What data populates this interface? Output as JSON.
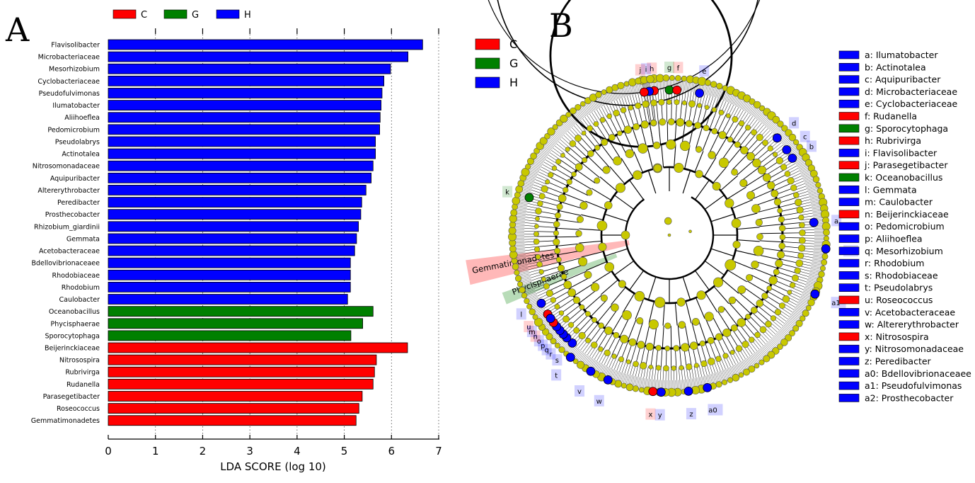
{
  "panel_a": {
    "letter": "A",
    "legend": [
      {
        "label": "C",
        "color": "#ff0000"
      },
      {
        "label": "G",
        "color": "#008000"
      },
      {
        "label": "H",
        "color": "#0000ff"
      }
    ],
    "chart_data": {
      "type": "bar",
      "orientation": "horizontal",
      "xlabel": "LDA SCORE (log 10)",
      "xlim": [
        0,
        7
      ],
      "xticks": [
        0,
        1,
        2,
        3,
        4,
        5,
        6,
        7
      ],
      "grid": "vertical dotted",
      "categories": [
        "Flavisolibacter",
        "Microbacteriaceae",
        "Mesorhizobium",
        "Cyclobacteriaceae",
        "Pseudofulvimonas",
        "Ilumatobacter",
        "Aliihoeflea",
        "Pedomicrobium",
        "Pseudolabrys",
        "Actinotalea",
        "Nitrosomonadaceae",
        "Aquipuribacter",
        "Altererythrobacter",
        "Peredibacter",
        "Prosthecobacter",
        "Rhizobium_giardinii",
        "Gemmata",
        "Acetobacteraceae",
        "Bdellovibrionaceaee",
        "Rhodobiaceae",
        "Rhodobium",
        "Caulobacter",
        "Oceanobacillus",
        "Phycisphaerae",
        "Sporocytophaga",
        "Beijerinckiaceae",
        "Nitrosospira",
        "Rubrivirga",
        "Rudanella",
        "Parasegetibacter",
        "Roseococcus",
        "Gemmatimonadetes"
      ],
      "values": [
        6.66,
        6.35,
        5.98,
        5.84,
        5.8,
        5.78,
        5.76,
        5.75,
        5.66,
        5.66,
        5.61,
        5.57,
        5.46,
        5.37,
        5.35,
        5.3,
        5.26,
        5.22,
        5.13,
        5.13,
        5.13,
        5.07,
        5.61,
        5.39,
        5.14,
        6.34,
        5.68,
        5.64,
        5.61,
        5.38,
        5.31,
        5.25
      ],
      "groups": [
        "H",
        "H",
        "H",
        "H",
        "H",
        "H",
        "H",
        "H",
        "H",
        "H",
        "H",
        "H",
        "H",
        "H",
        "H",
        "H",
        "H",
        "H",
        "H",
        "H",
        "H",
        "H",
        "G",
        "G",
        "G",
        "C",
        "C",
        "C",
        "C",
        "C",
        "C",
        "C"
      ]
    }
  },
  "panel_b": {
    "letter": "B",
    "legend": [
      {
        "label": "C",
        "color": "#ff0000"
      },
      {
        "label": "G",
        "color": "#008000"
      },
      {
        "label": "H",
        "color": "#0000ff"
      }
    ],
    "clade_legend": [
      {
        "label": "a: Ilumatobacter",
        "group": "H"
      },
      {
        "label": "b: Actinotalea",
        "group": "H"
      },
      {
        "label": "c: Aquipuribacter",
        "group": "H"
      },
      {
        "label": "d: Microbacteriaceae",
        "group": "H"
      },
      {
        "label": "e: Cyclobacteriaceae",
        "group": "H"
      },
      {
        "label": "f: Rudanella",
        "group": "C"
      },
      {
        "label": "g: Sporocytophaga",
        "group": "G"
      },
      {
        "label": "h: Rubrivirga",
        "group": "C"
      },
      {
        "label": "i: Flavisolibacter",
        "group": "H"
      },
      {
        "label": "j: Parasegetibacter",
        "group": "C"
      },
      {
        "label": "k: Oceanobacillus",
        "group": "G"
      },
      {
        "label": "l: Gemmata",
        "group": "H"
      },
      {
        "label": "m: Caulobacter",
        "group": "H"
      },
      {
        "label": "n: Beijerinckiaceae",
        "group": "C"
      },
      {
        "label": "o: Pedomicrobium",
        "group": "H"
      },
      {
        "label": "p: Aliihoeflea",
        "group": "H"
      },
      {
        "label": "q: Mesorhizobium",
        "group": "H"
      },
      {
        "label": "r: Rhodobium",
        "group": "H"
      },
      {
        "label": "s: Rhodobiaceae",
        "group": "H"
      },
      {
        "label": "t: Pseudolabrys",
        "group": "H"
      },
      {
        "label": "u: Roseococcus",
        "group": "C"
      },
      {
        "label": "v: Acetobacteraceae",
        "group": "H"
      },
      {
        "label": "w: Altererythrobacter",
        "group": "H"
      },
      {
        "label": "x: Nitrosospira",
        "group": "C"
      },
      {
        "label": "y: Nitrosomonadaceae",
        "group": "H"
      },
      {
        "label": "z: Peredibacter",
        "group": "H"
      },
      {
        "label": "a0: Bdellovibrionaceaee",
        "group": "H"
      },
      {
        "label": "a1: Pseudofulvimonas",
        "group": "H"
      },
      {
        "label": "a2: Prosthecobacter",
        "group": "H"
      }
    ],
    "phylum_labels": [
      {
        "text": "Gemmatimonadetes",
        "group": "C"
      },
      {
        "text": "Phycisphaerae",
        "group": "G"
      }
    ],
    "clade_markers": [
      {
        "letter": "e",
        "angle": -78,
        "group": "H"
      },
      {
        "letter": "h",
        "angle": -96,
        "group": "C"
      },
      {
        "letter": "g",
        "angle": -90,
        "group": "G"
      },
      {
        "letter": "f",
        "angle": -87,
        "group": "C"
      },
      {
        "letter": "d",
        "angle": -42,
        "group": "H"
      },
      {
        "letter": "c",
        "angle": -36,
        "group": "H"
      },
      {
        "letter": "b",
        "angle": -32,
        "group": "H"
      },
      {
        "letter": "a",
        "angle": -5,
        "group": "H"
      },
      {
        "letter": "a2",
        "angle": 5,
        "group": "H"
      },
      {
        "letter": "a1",
        "angle": 22,
        "group": "H"
      },
      {
        "letter": "a0",
        "angle": 76,
        "group": "H"
      },
      {
        "letter": "z",
        "angle": 83,
        "group": "H"
      },
      {
        "letter": "y",
        "angle": 93,
        "group": "H"
      },
      {
        "letter": "x",
        "angle": 96,
        "group": "C"
      },
      {
        "letter": "w",
        "angle": 113,
        "group": "H"
      },
      {
        "letter": "v",
        "angle": 120,
        "group": "H"
      },
      {
        "letter": "u",
        "angle": 147,
        "group": "C"
      },
      {
        "letter": "t",
        "angle": 129,
        "group": "H"
      },
      {
        "letter": "s",
        "angle": 132,
        "group": "H"
      },
      {
        "letter": "r",
        "angle": 135,
        "group": "H"
      },
      {
        "letter": "q",
        "angle": 137,
        "group": "H"
      },
      {
        "letter": "p",
        "angle": 139,
        "group": "H"
      },
      {
        "letter": "o",
        "angle": 141,
        "group": "H"
      },
      {
        "letter": "n",
        "angle": 143,
        "group": "C"
      },
      {
        "letter": "m",
        "angle": 145,
        "group": "H"
      },
      {
        "letter": "l",
        "angle": 152,
        "group": "H"
      },
      {
        "letter": "k",
        "angle": 195,
        "group": "G"
      },
      {
        "letter": "i",
        "angle": -98,
        "group": "H"
      },
      {
        "letter": "j",
        "angle": -100,
        "group": "C"
      }
    ]
  }
}
